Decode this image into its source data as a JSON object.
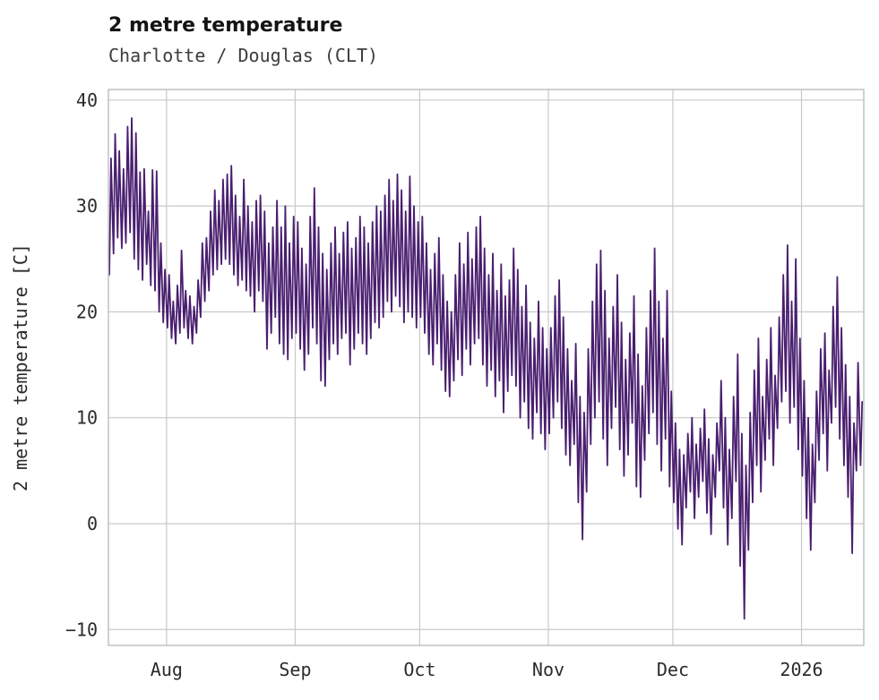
{
  "header": {
    "title": "2 metre temperature",
    "subtitle": "Charlotte / Douglas (CLT)"
  },
  "style": {
    "line_color": "#491e6f",
    "grid_color": "#c9c9c9",
    "spine_color": "#bdbdbd",
    "tick_text_color": "#2b2b2b",
    "background": "#ffffff"
  },
  "chart_data": {
    "type": "line",
    "title": "2 metre temperature",
    "subtitle": "Charlotte / Douglas (CLT)",
    "xlabel": "",
    "ylabel": "2 metre temperature [C]",
    "ylim": [
      -11.5,
      41
    ],
    "yticks": [
      -10,
      0,
      10,
      20,
      30,
      40
    ],
    "grid": true,
    "legend": "none",
    "x_start": "2025-07-18",
    "x_total_days": 182,
    "xticks": [
      {
        "label": "Aug",
        "day": 14
      },
      {
        "label": "Sep",
        "day": 45
      },
      {
        "label": "Oct",
        "day": 75
      },
      {
        "label": "Nov",
        "day": 106
      },
      {
        "label": "Dec",
        "day": 136
      },
      {
        "label": "2026",
        "day": 167
      }
    ],
    "series": [
      {
        "name": "2 metre temperature",
        "sampling": "two points per day (daily min then daily max), values in degrees C",
        "daily_max": [
          34.5,
          36.8,
          35.2,
          33.5,
          37.5,
          38.3,
          36.9,
          33.2,
          33.5,
          29.5,
          33.4,
          33.3,
          26.5,
          24.0,
          23.5,
          21.0,
          22.5,
          25.8,
          22.0,
          21.5,
          20.5,
          23.0,
          26.5,
          27.0,
          29.5,
          31.5,
          30.5,
          32.5,
          33.0,
          33.8,
          31.0,
          29.0,
          32.5,
          30.0,
          28.5,
          30.5,
          31.0,
          29.5,
          26.5,
          28.0,
          30.5,
          28.0,
          30.0,
          26.5,
          29.0,
          28.5,
          26.0,
          24.5,
          29.0,
          31.7,
          28.0,
          25.5,
          24.0,
          26.5,
          28.0,
          25.5,
          27.5,
          28.5,
          26.0,
          27.0,
          29.0,
          28.0,
          26.5,
          28.5,
          30.0,
          29.5,
          31.0,
          32.5,
          30.5,
          33.0,
          31.5,
          29.5,
          32.8,
          30.0,
          28.5,
          29.0,
          26.5,
          24.0,
          25.5,
          27.0,
          23.5,
          21.0,
          20.0,
          23.5,
          26.5,
          24.5,
          27.5,
          25.0,
          28.0,
          29.0,
          26.0,
          23.5,
          25.5,
          22.0,
          24.5,
          21.5,
          23.0,
          26.0,
          24.0,
          20.5,
          22.5,
          19.0,
          17.5,
          21.0,
          18.5,
          16.5,
          18.5,
          21.5,
          23.0,
          19.5,
          16.5,
          13.5,
          17.0,
          12.0,
          10.5,
          16.5,
          21.0,
          24.5,
          25.8,
          22.0,
          17.5,
          20.5,
          23.5,
          19.0,
          15.5,
          18.0,
          21.5,
          16.0,
          13.0,
          18.5,
          22.0,
          26.0,
          21.0,
          17.5,
          22.0,
          12.5,
          9.5,
          7.0,
          6.5,
          8.5,
          10.0,
          7.5,
          9.0,
          10.8,
          8.0,
          6.5,
          9.5,
          13.5,
          10.0,
          7.0,
          12.0,
          16.0,
          8.5,
          5.5,
          10.5,
          14.5,
          17.5,
          12.0,
          15.5,
          18.5,
          14.0,
          19.5,
          23.5,
          26.3,
          21.0,
          25.0,
          17.5,
          13.5,
          10.0,
          7.5,
          12.5,
          16.5,
          18.0,
          14.5,
          20.5,
          23.3,
          18.5,
          15.0,
          12.0,
          9.5,
          15.2,
          11.5
        ],
        "daily_min": [
          23.5,
          25.5,
          27.0,
          26.0,
          26.5,
          27.5,
          25.0,
          24.0,
          23.0,
          24.5,
          22.5,
          22.0,
          20.0,
          19.0,
          18.5,
          17.5,
          17.0,
          18.0,
          18.5,
          17.5,
          17.0,
          18.0,
          19.5,
          21.0,
          22.0,
          23.5,
          24.0,
          24.5,
          25.0,
          24.5,
          23.5,
          22.5,
          23.0,
          22.0,
          21.5,
          20.0,
          22.0,
          21.0,
          16.5,
          18.0,
          19.5,
          17.0,
          16.0,
          15.5,
          17.5,
          18.0,
          16.5,
          14.5,
          16.0,
          18.5,
          17.0,
          13.5,
          13.0,
          15.5,
          17.0,
          16.0,
          17.5,
          18.0,
          15.0,
          16.5,
          18.0,
          17.0,
          16.0,
          17.5,
          19.0,
          18.5,
          19.5,
          21.0,
          20.0,
          21.5,
          20.5,
          19.0,
          20.0,
          19.5,
          18.5,
          19.5,
          18.0,
          16.0,
          15.0,
          17.0,
          14.5,
          12.5,
          12.0,
          13.5,
          15.5,
          14.0,
          16.5,
          15.0,
          17.0,
          17.5,
          15.0,
          13.0,
          14.5,
          12.0,
          13.5,
          10.5,
          12.5,
          14.0,
          13.0,
          10.0,
          11.5,
          9.0,
          8.0,
          10.5,
          8.5,
          7.0,
          8.5,
          10.0,
          11.5,
          9.0,
          6.5,
          5.5,
          7.5,
          2.0,
          -1.5,
          3.0,
          7.5,
          10.0,
          11.5,
          8.0,
          5.5,
          9.0,
          11.0,
          7.0,
          4.5,
          6.5,
          9.5,
          3.5,
          2.5,
          6.0,
          8.5,
          10.5,
          7.5,
          5.0,
          8.0,
          3.5,
          2.0,
          -0.5,
          -2.0,
          1.5,
          3.0,
          0.5,
          2.5,
          4.0,
          1.0,
          -1.0,
          2.5,
          5.0,
          1.5,
          -2.0,
          0.5,
          4.0,
          -4.0,
          -9.0,
          -2.5,
          2.0,
          5.5,
          3.0,
          6.0,
          8.0,
          5.5,
          9.0,
          11.5,
          12.5,
          9.5,
          11.0,
          7.0,
          4.5,
          0.5,
          -2.5,
          2.0,
          6.0,
          8.5,
          5.0,
          9.5,
          11.0,
          8.0,
          5.5,
          2.5,
          -2.8,
          5.0,
          5.5
        ]
      }
    ]
  }
}
